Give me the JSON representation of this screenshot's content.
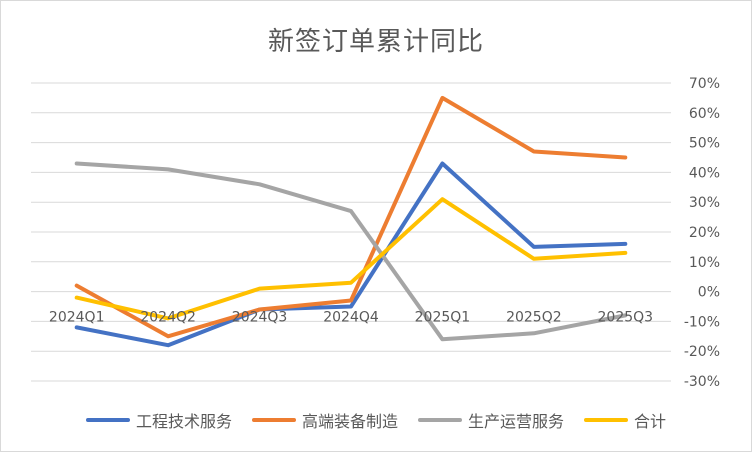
{
  "chart_data": {
    "type": "line",
    "title": "新签订单累计同比",
    "categories": [
      "2024Q1",
      "2024Q2",
      "2024Q3",
      "2024Q4",
      "2025Q1",
      "2025Q2",
      "2025Q3"
    ],
    "y_ticks": [
      "70%",
      "60%",
      "50%",
      "40%",
      "30%",
      "20%",
      "10%",
      "0%",
      "-10%",
      "-20%",
      "-30%"
    ],
    "ylim": [
      -30,
      70
    ],
    "y_unit": "%",
    "grid": true,
    "legend_position": "bottom",
    "series": [
      {
        "name": "工程技术服务",
        "color": "#4472C4",
        "values": [
          -12,
          -18,
          -6,
          -5,
          43,
          15,
          16
        ]
      },
      {
        "name": "高端装备制造",
        "color": "#ED7D31",
        "values": [
          2,
          -15,
          -6,
          -3,
          65,
          47,
          45
        ]
      },
      {
        "name": "生产运营服务",
        "color": "#A5A5A5",
        "values": [
          43,
          41,
          36,
          27,
          -16,
          -14,
          -8
        ]
      },
      {
        "name": "合计",
        "color": "#FFC000",
        "values": [
          -2,
          -9,
          1,
          3,
          31,
          11,
          13
        ]
      }
    ]
  }
}
